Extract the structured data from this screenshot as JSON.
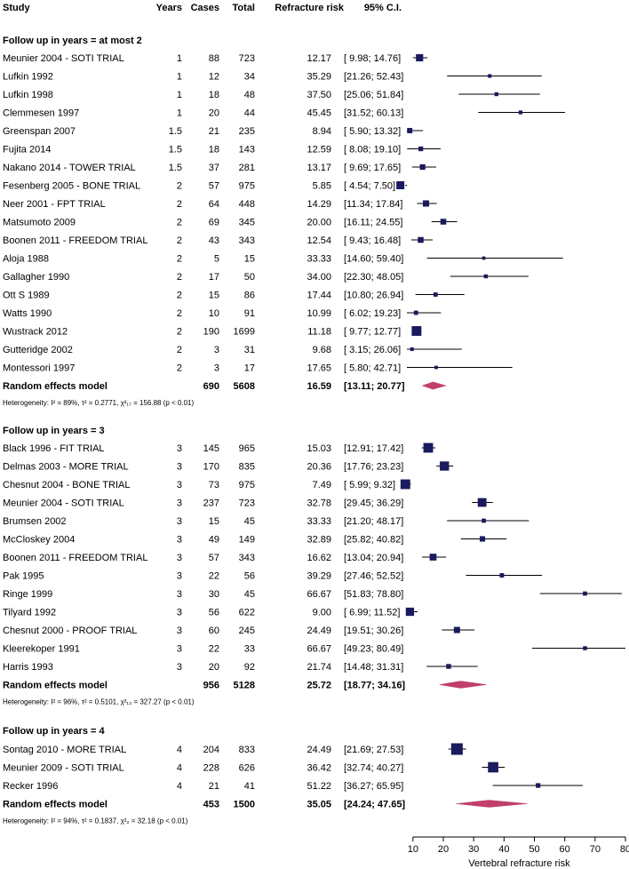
{
  "header": {
    "study": "Study",
    "years": "Years",
    "cases": "Cases",
    "total": "Total",
    "risk": "Refracture risk",
    "ci": "95% C.I."
  },
  "groups": [
    {
      "title": "Follow up in years = at most 2",
      "studies": [
        {
          "name": "Meunier 2004 - SOTI TRIAL",
          "years": "1",
          "cases": "88",
          "total": "723",
          "risk_text": "12.17",
          "ci_text": "[ 9.98; 14.76]"
        },
        {
          "name": "Lufkin 1992",
          "years": "1",
          "cases": "12",
          "total": "34",
          "risk_text": "35.29",
          "ci_text": "[21.26; 52.43]"
        },
        {
          "name": "Lufkin 1998",
          "years": "1",
          "cases": "18",
          "total": "48",
          "risk_text": "37.50",
          "ci_text": "[25.06; 51.84]"
        },
        {
          "name": "Clemmesen 1997",
          "years": "1",
          "cases": "20",
          "total": "44",
          "risk_text": "45.45",
          "ci_text": "[31.52; 60.13]"
        },
        {
          "name": "Greenspan 2007",
          "years": "1.5",
          "cases": "21",
          "total": "235",
          "risk_text": "8.94",
          "ci_text": "[ 5.90; 13.32]"
        },
        {
          "name": "Fujita 2014",
          "years": "1.5",
          "cases": "18",
          "total": "143",
          "risk_text": "12.59",
          "ci_text": "[ 8.08; 19.10]"
        },
        {
          "name": "Nakano 2014 - TOWER TRIAL",
          "years": "1.5",
          "cases": "37",
          "total": "281",
          "risk_text": "13.17",
          "ci_text": "[ 9.69; 17.65]"
        },
        {
          "name": "Fesenberg 2005 - BONE TRIAL",
          "years": "2",
          "cases": "57",
          "total": "975",
          "risk_text": "5.85",
          "ci_text": "[ 4.54;  7.50]"
        },
        {
          "name": "Neer 2001 - FPT TRIAL",
          "years": "2",
          "cases": "64",
          "total": "448",
          "risk_text": "14.29",
          "ci_text": "[11.34; 17.84]"
        },
        {
          "name": "Matsumoto 2009",
          "years": "2",
          "cases": "69",
          "total": "345",
          "risk_text": "20.00",
          "ci_text": "[16.11; 24.55]"
        },
        {
          "name": "Boonen 2011 - FREEDOM TRIAL",
          "years": "2",
          "cases": "43",
          "total": "343",
          "risk_text": "12.54",
          "ci_text": "[ 9.43; 16.48]"
        },
        {
          "name": "Aloja 1988",
          "years": "2",
          "cases": "5",
          "total": "15",
          "risk_text": "33.33",
          "ci_text": "[14.60; 59.40]"
        },
        {
          "name": "Gallagher 1990",
          "years": "2",
          "cases": "17",
          "total": "50",
          "risk_text": "34.00",
          "ci_text": "[22.30; 48.05]"
        },
        {
          "name": "Ott S 1989",
          "years": "2",
          "cases": "15",
          "total": "86",
          "risk_text": "17.44",
          "ci_text": "[10.80; 26.94]"
        },
        {
          "name": "Watts 1990",
          "years": "2",
          "cases": "10",
          "total": "91",
          "risk_text": "10.99",
          "ci_text": "[ 6.02; 19.23]"
        },
        {
          "name": "Wustrack 2012",
          "years": "2",
          "cases": "190",
          "total": "1699",
          "risk_text": "11.18",
          "ci_text": "[ 9.77; 12.77]"
        },
        {
          "name": "Gutteridge 2002",
          "years": "2",
          "cases": "3",
          "total": "31",
          "risk_text": "9.68",
          "ci_text": "[ 3.15; 26.06]"
        },
        {
          "name": "Montessori 1997",
          "years": "2",
          "cases": "3",
          "total": "17",
          "risk_text": "17.65",
          "ci_text": "[ 5.80; 42.71]"
        }
      ],
      "summary": {
        "label": "Random effects model",
        "cases": "690",
        "total": "5608",
        "risk_text": "16.59",
        "ci_text": "[13.11; 20.77]"
      },
      "heterogeneity": {
        "text": "Heterogeneity: I² = 89%, τ² = 0.2771, χ²₁₇ = 156.88 (p < 0.01)"
      }
    },
    {
      "title": "Follow up in years = 3",
      "studies": [
        {
          "name": "Black 1996 - FIT TRIAL",
          "years": "3",
          "cases": "145",
          "total": "965",
          "risk_text": "15.03",
          "ci_text": "[12.91; 17.42]"
        },
        {
          "name": "Delmas 2003 - MORE TRIAL",
          "years": "3",
          "cases": "170",
          "total": "835",
          "risk_text": "20.36",
          "ci_text": "[17.76; 23.23]"
        },
        {
          "name": "Chesnut 2004 - BONE TRIAL",
          "years": "3",
          "cases": "73",
          "total": "975",
          "risk_text": "7.49",
          "ci_text": "[ 5.99;  9.32]"
        },
        {
          "name": "Meunier 2004 - SOTI TRIAL",
          "years": "3",
          "cases": "237",
          "total": "723",
          "risk_text": "32.78",
          "ci_text": "[29.45; 36.29]"
        },
        {
          "name": "Brumsen 2002",
          "years": "3",
          "cases": "15",
          "total": "45",
          "risk_text": "33.33",
          "ci_text": "[21.20; 48.17]"
        },
        {
          "name": "McCloskey 2004",
          "years": "3",
          "cases": "49",
          "total": "149",
          "risk_text": "32.89",
          "ci_text": "[25.82; 40.82]"
        },
        {
          "name": "Boonen 2011 - FREEDOM TRIAL",
          "years": "3",
          "cases": "57",
          "total": "343",
          "risk_text": "16.62",
          "ci_text": "[13.04; 20.94]"
        },
        {
          "name": "Pak 1995",
          "years": "3",
          "cases": "22",
          "total": "56",
          "risk_text": "39.29",
          "ci_text": "[27.46; 52.52]"
        },
        {
          "name": "Ringe 1999",
          "years": "3",
          "cases": "30",
          "total": "45",
          "risk_text": "66.67",
          "ci_text": "[51.83; 78.80]"
        },
        {
          "name": "Tilyard 1992",
          "years": "3",
          "cases": "56",
          "total": "622",
          "risk_text": "9.00",
          "ci_text": "[ 6.99; 11.52]"
        },
        {
          "name": "Chesnut 2000 - PROOF TRIAL",
          "years": "3",
          "cases": "60",
          "total": "245",
          "risk_text": "24.49",
          "ci_text": "[19.51; 30.26]"
        },
        {
          "name": "Kleerekoper 1991",
          "years": "3",
          "cases": "22",
          "total": "33",
          "risk_text": "66.67",
          "ci_text": "[49.23; 80.49]"
        },
        {
          "name": "Harris 1993",
          "years": "3",
          "cases": "20",
          "total": "92",
          "risk_text": "21.74",
          "ci_text": "[14.48; 31.31]"
        }
      ],
      "summary": {
        "label": "Random effects model",
        "cases": "956",
        "total": "5128",
        "risk_text": "25.72",
        "ci_text": "[18.77; 34.16]"
      },
      "heterogeneity": {
        "text": "Heterogeneity: I² = 96%, τ² = 0.5101, χ²₁₂ = 327.27 (p < 0.01)"
      }
    },
    {
      "title": "Follow up in years = 4",
      "studies": [
        {
          "name": "Sontag 2010 - MORE TRIAL",
          "years": "4",
          "cases": "204",
          "total": "833",
          "risk_text": "24.49",
          "ci_text": "[21.69; 27.53]"
        },
        {
          "name": "Meunier 2009 - SOTI TRIAL",
          "years": "4",
          "cases": "228",
          "total": "626",
          "risk_text": "36.42",
          "ci_text": "[32.74; 40.27]"
        },
        {
          "name": "Recker 1996",
          "years": "4",
          "cases": "21",
          "total": "41",
          "risk_text": "51.22",
          "ci_text": "[36.27; 65.95]"
        }
      ],
      "summary": {
        "label": "Random effects model",
        "cases": "453",
        "total": "1500",
        "risk_text": "35.05",
        "ci_text": "[24.24; 47.65]"
      },
      "heterogeneity": {
        "text": "Heterogeneity: I² = 94%, τ² = 0.1837, χ²₂ = 32.18 (p < 0.01)"
      }
    }
  ],
  "chart_data": {
    "type": "forest",
    "xlabel": "Vertebral refracture risk",
    "xlim": [
      8,
      80
    ],
    "xticks": [
      10,
      20,
      30,
      40,
      50,
      60,
      70,
      80
    ],
    "colors": {
      "study_marker": "#1a1a5e",
      "summary_diamond": "#c0406a",
      "line": "#000000"
    },
    "groups": [
      {
        "name": "Follow up in years = at most 2",
        "estimates": [
          12.17,
          35.29,
          37.5,
          45.45,
          8.94,
          12.59,
          13.17,
          5.85,
          14.29,
          20.0,
          12.54,
          33.33,
          34.0,
          17.44,
          10.99,
          11.18,
          9.68,
          17.65
        ],
        "ci_low": [
          9.98,
          21.26,
          25.06,
          31.52,
          5.9,
          8.08,
          9.69,
          4.54,
          11.34,
          16.11,
          9.43,
          14.6,
          22.3,
          10.8,
          6.02,
          9.77,
          3.15,
          5.8
        ],
        "ci_high": [
          14.76,
          52.43,
          51.84,
          60.13,
          13.32,
          19.1,
          17.65,
          7.5,
          17.84,
          24.55,
          16.48,
          59.4,
          48.05,
          26.94,
          19.23,
          12.77,
          26.06,
          42.71
        ],
        "weights": [
          723,
          34,
          48,
          44,
          235,
          143,
          281,
          975,
          448,
          345,
          343,
          15,
          50,
          86,
          91,
          1699,
          31,
          17
        ],
        "summary": {
          "estimate": 16.59,
          "ci_low": 13.11,
          "ci_high": 20.77
        }
      },
      {
        "name": "Follow up in years = 3",
        "estimates": [
          15.03,
          20.36,
          7.49,
          32.78,
          33.33,
          32.89,
          16.62,
          39.29,
          66.67,
          9.0,
          24.49,
          66.67,
          21.74
        ],
        "ci_low": [
          12.91,
          17.76,
          5.99,
          29.45,
          21.2,
          25.82,
          13.04,
          27.46,
          51.83,
          6.99,
          19.51,
          49.23,
          14.48
        ],
        "ci_high": [
          17.42,
          23.23,
          9.32,
          36.29,
          48.17,
          40.82,
          20.94,
          52.52,
          78.8,
          11.52,
          30.26,
          80.49,
          31.31
        ],
        "weights": [
          965,
          835,
          975,
          723,
          45,
          149,
          343,
          56,
          45,
          622,
          245,
          33,
          92
        ],
        "summary": {
          "estimate": 25.72,
          "ci_low": 18.77,
          "ci_high": 34.16
        }
      },
      {
        "name": "Follow up in years = 4",
        "estimates": [
          24.49,
          36.42,
          51.22
        ],
        "ci_low": [
          21.69,
          32.74,
          36.27
        ],
        "ci_high": [
          27.53,
          40.27,
          65.95
        ],
        "weights": [
          833,
          626,
          41
        ],
        "summary": {
          "estimate": 35.05,
          "ci_low": 24.24,
          "ci_high": 47.65
        }
      }
    ]
  }
}
